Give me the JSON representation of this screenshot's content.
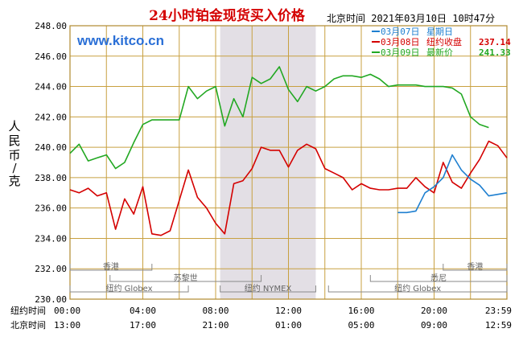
{
  "chart_data": {
    "type": "line",
    "title": "24小时铂金现货买入价格",
    "subtitle": "北京时间  2021年03月10日 10时47分",
    "watermark": "www.kitco.cn",
    "ylabel": "人民币/克",
    "ylim": [
      230,
      248
    ],
    "yticks": [
      "248.00",
      "246.00",
      "244.00",
      "242.00",
      "240.00",
      "238.00",
      "236.00",
      "234.00",
      "232.00",
      "230.00"
    ],
    "xrange_hours": [
      0,
      24
    ],
    "x_rows": [
      {
        "label": "纽约时间",
        "ticks": [
          "00:00",
          "04:00",
          "08:00",
          "12:00",
          "16:00",
          "20:00",
          "23:59"
        ]
      },
      {
        "label": "北京时间",
        "ticks": [
          "13:00",
          "17:00",
          "21:00",
          "01:00",
          "05:00",
          "09:00",
          "12:59"
        ]
      }
    ],
    "shaded_range_hours": [
      8.25,
      13.5
    ],
    "market_bars": [
      {
        "label": "香港",
        "range": [
          0,
          4.5
        ],
        "row": 0
      },
      {
        "label": "苏黎世",
        "range": [
          2.2,
          10.5
        ],
        "row": 1
      },
      {
        "label": "纽约 Globex",
        "range": [
          0,
          6.5
        ],
        "row": 2
      },
      {
        "label": "纽约 NYMEX",
        "range": [
          8.25,
          13.5
        ],
        "row": 2
      },
      {
        "label": "纽约 Globex",
        "range": [
          14.2,
          24
        ],
        "row": 2
      },
      {
        "label": "香港",
        "range": [
          20.5,
          24
        ],
        "row": 0
      },
      {
        "label": "悉尼",
        "range": [
          16.5,
          24
        ],
        "row": 1
      }
    ],
    "legend": [
      {
        "date": "03月07日",
        "label": "星期日",
        "value": "",
        "color": "#1e7fd0"
      },
      {
        "date": "03月08日",
        "label": "纽约收盘",
        "value": "237.14",
        "color": "#d40000"
      },
      {
        "date": "03月09日",
        "label": "最新价",
        "value": "241.33",
        "color": "#22a822"
      }
    ],
    "series": [
      {
        "date": "03月08日",
        "color": "#d40000",
        "x": [
          0,
          0.5,
          1,
          1.5,
          2,
          2.5,
          3,
          3.5,
          4,
          4.5,
          5,
          5.5,
          6,
          6.5,
          7,
          7.5,
          8,
          8.5,
          9,
          9.5,
          10,
          10.5,
          11,
          11.5,
          12,
          12.5,
          13,
          13.5,
          14,
          14.5,
          15,
          15.5,
          16,
          16.5,
          17,
          17.5,
          18,
          18.5,
          19,
          19.5,
          20,
          20.5,
          21,
          21.5,
          22,
          22.5,
          23,
          23.5,
          24
        ],
        "y": [
          237.2,
          237.0,
          237.3,
          236.8,
          237.0,
          234.6,
          236.6,
          235.6,
          237.4,
          234.3,
          234.2,
          234.5,
          236.5,
          238.5,
          236.7,
          236.0,
          235.0,
          234.3,
          237.6,
          237.8,
          238.6,
          240.0,
          239.8,
          239.8,
          238.7,
          239.8,
          240.2,
          239.9,
          238.6,
          238.3,
          238.0,
          237.2,
          237.6,
          237.3,
          237.2,
          237.2,
          237.3,
          237.3,
          238.0,
          237.4,
          237.0,
          239.0,
          237.7,
          237.3,
          238.3,
          239.2,
          240.4,
          240.1,
          239.3
        ]
      },
      {
        "date": "03月09日",
        "color": "#22a822",
        "x": [
          0,
          0.5,
          1,
          1.5,
          2,
          2.5,
          3,
          3.5,
          4,
          4.5,
          5,
          5.5,
          6,
          6.5,
          7,
          7.5,
          8,
          8.5,
          9,
          9.5,
          10,
          10.5,
          11,
          11.5,
          12,
          12.5,
          13,
          13.5,
          14,
          14.5,
          15,
          15.5,
          16,
          16.5,
          17,
          17.5,
          18,
          18.5,
          19,
          19.5,
          20,
          20.5,
          21,
          21.5,
          22,
          22.5,
          23
        ],
        "y": [
          239.6,
          240.2,
          239.1,
          239.3,
          239.5,
          238.6,
          239.0,
          240.3,
          241.5,
          241.8,
          241.8,
          241.8,
          241.8,
          244.0,
          243.2,
          243.7,
          244.0,
          241.4,
          243.2,
          242.0,
          244.6,
          244.2,
          244.5,
          245.3,
          243.8,
          243.0,
          244.0,
          243.7,
          244.0,
          244.5,
          244.7,
          244.7,
          244.6,
          244.8,
          244.5,
          244.0,
          244.1,
          244.1,
          244.1,
          244.0,
          244.0,
          244.0,
          243.9,
          243.5,
          242.0,
          241.5,
          241.3
        ]
      },
      {
        "date": "03月07日",
        "color": "#1e7fd0",
        "x": [
          18,
          18.5,
          19,
          19.5,
          20,
          20.5,
          21,
          21.5,
          22,
          22.5,
          23,
          23.5,
          24
        ],
        "y": [
          235.7,
          235.7,
          235.8,
          237.0,
          237.4,
          238.0,
          239.5,
          238.5,
          237.9,
          237.5,
          236.8,
          236.9,
          237.0
        ]
      }
    ]
  }
}
